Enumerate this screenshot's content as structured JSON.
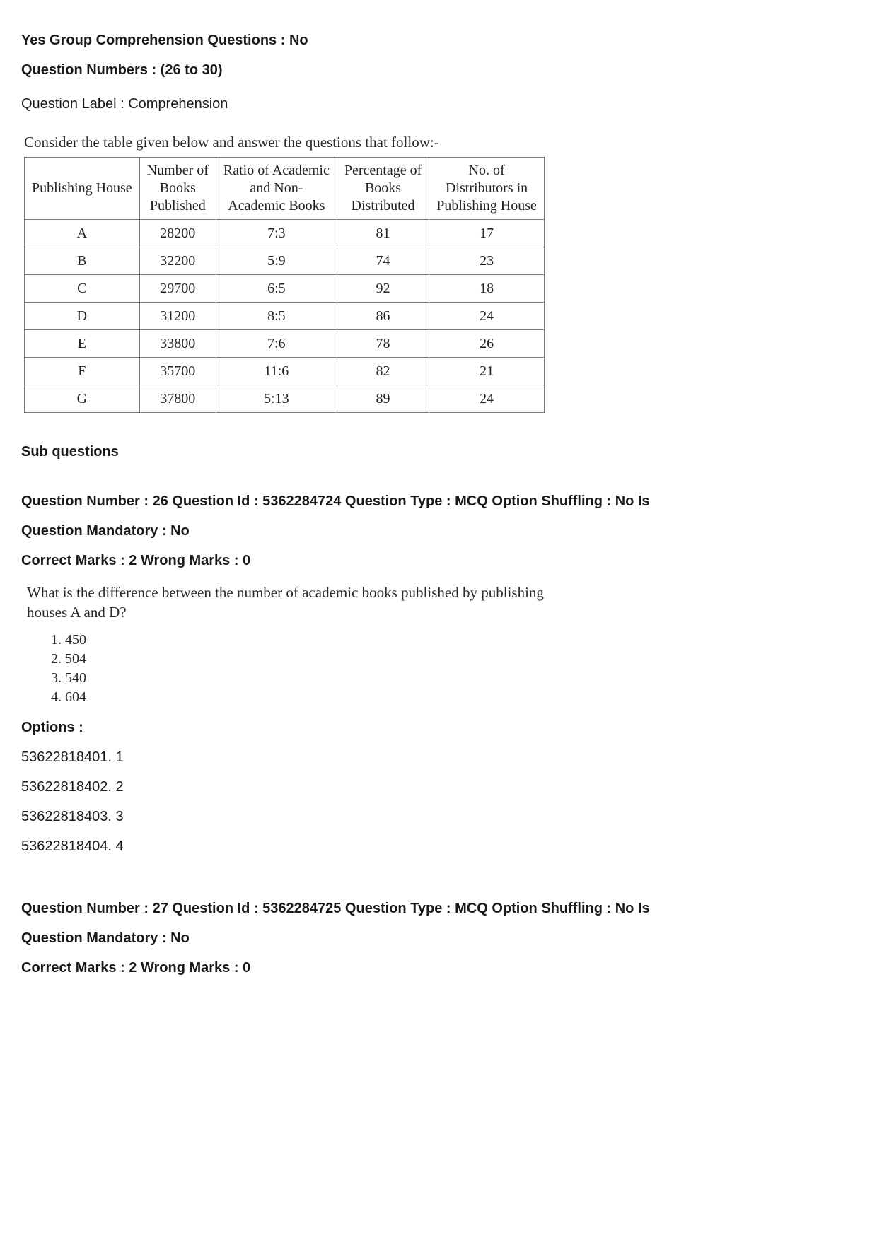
{
  "header": {
    "group_line": "Yes Group Comprehension Questions : No",
    "numbers_line": "Question Numbers : (26 to 30)",
    "label_line": "Question Label : Comprehension"
  },
  "prompt": "Consider the table given below and answer the questions that follow:-",
  "table": {
    "headers": {
      "c1": "Publishing House",
      "c2_l1": "Number of",
      "c2_l2": "Books",
      "c2_l3": "Published",
      "c3_l1": "Ratio of Academic",
      "c3_l2": "and Non-",
      "c3_l3": "Academic Books",
      "c4_l1": "Percentage of",
      "c4_l2": "Books",
      "c4_l3": "Distributed",
      "c5_l1": "No. of",
      "c5_l2": "Distributors in",
      "c5_l3": "Publishing House"
    },
    "rows": [
      {
        "house": "A",
        "books": "28200",
        "ratio": "7:3",
        "pct": "81",
        "dist": "17"
      },
      {
        "house": "B",
        "books": "32200",
        "ratio": "5:9",
        "pct": "74",
        "dist": "23"
      },
      {
        "house": "C",
        "books": "29700",
        "ratio": "6:5",
        "pct": "92",
        "dist": "18"
      },
      {
        "house": "D",
        "books": "31200",
        "ratio": "8:5",
        "pct": "86",
        "dist": "24"
      },
      {
        "house": "E",
        "books": "33800",
        "ratio": "7:6",
        "pct": "78",
        "dist": "26"
      },
      {
        "house": "F",
        "books": "35700",
        "ratio": "11:6",
        "pct": "82",
        "dist": "21"
      },
      {
        "house": "G",
        "books": "37800",
        "ratio": "5:13",
        "pct": "89",
        "dist": "24"
      }
    ]
  },
  "sub_heading": "Sub questions",
  "q26": {
    "meta1": "Question Number : 26 Question Id : 5362284724 Question Type : MCQ Option Shuffling : No Is",
    "meta2": "Question Mandatory : No",
    "marks": "Correct Marks : 2 Wrong Marks : 0",
    "text_l1": "What is the difference between the number of academic books published by publishing",
    "text_l2": "houses A and D?",
    "answers": [
      "450",
      "504",
      "540",
      "604"
    ],
    "options_heading": "Options :",
    "options": [
      "53622818401. 1",
      "53622818402. 2",
      "53622818403. 3",
      "53622818404. 4"
    ]
  },
  "q27": {
    "meta1": "Question Number : 27 Question Id : 5362284725 Question Type : MCQ Option Shuffling : No Is",
    "meta2": "Question Mandatory : No",
    "marks": "Correct Marks : 2 Wrong Marks : 0"
  }
}
